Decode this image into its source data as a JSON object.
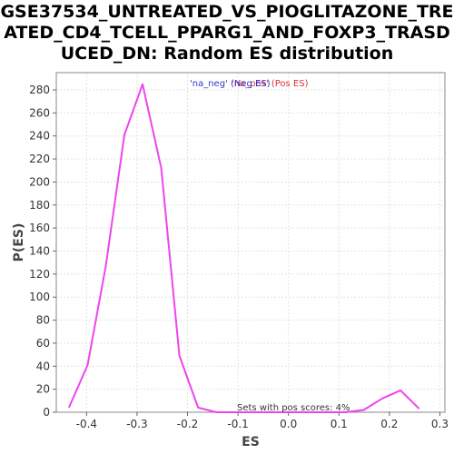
{
  "chart_data": {
    "type": "line",
    "title_lines": [
      "GSE37534_UNTREATED_VS_PIOGLITAZONE_TRE",
      "ATED_CD4_TCELL_PPARG1_AND_FOXP3_TRASD",
      "UCED_DN: Random ES distribution"
    ],
    "xlabel": "ES",
    "ylabel": "P(ES)",
    "xlim": [
      -0.46,
      0.31
    ],
    "ylim": [
      0,
      295
    ],
    "xticks": [
      "-0.4",
      "-0.3",
      "-0.2",
      "-0.1",
      "0.0",
      "0.1",
      "0.2",
      "0.3"
    ],
    "yticks": [
      "0",
      "20",
      "40",
      "60",
      "80",
      "100",
      "120",
      "140",
      "160",
      "180",
      "200",
      "220",
      "240",
      "260",
      "280"
    ],
    "grid": true,
    "legend": {
      "placement": "top-center",
      "entries": [
        {
          "text": "'na_neg' (Neg ES)",
          "color": "#3333cc"
        },
        {
          "text": "'na_pos' (Pos ES)",
          "color": "#e03030"
        }
      ]
    },
    "annotation": "Sets with pos scores: 4%",
    "series": [
      {
        "color": "#ee44ee",
        "x": [
          -0.435,
          -0.398,
          -0.362,
          -0.325,
          -0.289,
          -0.252,
          -0.216,
          -0.179,
          -0.143,
          -0.106,
          -0.07,
          -0.033,
          0.003,
          0.04,
          0.076,
          0.113,
          0.149,
          0.186,
          0.222,
          0.259
        ],
        "y": [
          4,
          41,
          127,
          241,
          285,
          212,
          49,
          4,
          0,
          0,
          0,
          0,
          0,
          0,
          0,
          0,
          2,
          12,
          19,
          3
        ]
      }
    ]
  }
}
